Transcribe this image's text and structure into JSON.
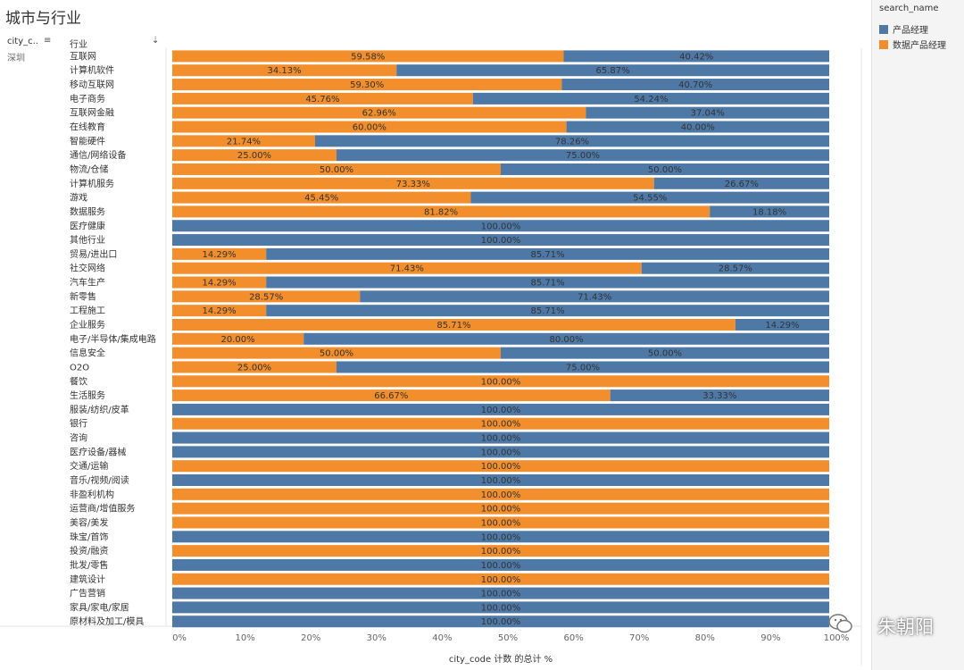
{
  "header": {
    "title": "城市与行业",
    "city_col": "city_c..",
    "industry_col": "行业",
    "city_value": "深圳"
  },
  "legend": {
    "title": "search_name",
    "items": [
      {
        "label": "产品经理",
        "color": "#4e79a7"
      },
      {
        "label": "数据产品经理",
        "color": "#f28e2b"
      }
    ]
  },
  "watermark": "朱朝阳",
  "chart_data": {
    "type": "bar",
    "orientation": "horizontal",
    "stacked": true,
    "categories": [
      "互联网",
      "计算机软件",
      "移动互联网",
      "电子商务",
      "互联网金融",
      "在线教育",
      "智能硬件",
      "通信/网络设备",
      "物流/仓储",
      "计算机服务",
      "游戏",
      "数据服务",
      "医疗健康",
      "其他行业",
      "贸易/进出口",
      "社交网络",
      "汽车生产",
      "新零售",
      "工程施工",
      "企业服务",
      "电子/半导体/集成电路",
      "信息安全",
      "O2O",
      "餐饮",
      "生活服务",
      "服装/纺织/皮革",
      "银行",
      "咨询",
      "医疗设备/器械",
      "交通/运输",
      "音乐/视频/阅读",
      "非盈利机构",
      "运营商/增值服务",
      "美容/美发",
      "珠宝/首饰",
      "投资/融资",
      "批发/零售",
      "建筑设计",
      "广告营销",
      "家具/家电/家居",
      "原材料及加工/模具"
    ],
    "series": [
      {
        "name": "数据产品经理",
        "color": "#f28e2b",
        "values": [
          59.58,
          34.13,
          59.3,
          45.76,
          62.96,
          60.0,
          21.74,
          25.0,
          50.0,
          73.33,
          45.45,
          81.82,
          0,
          0,
          14.29,
          71.43,
          14.29,
          28.57,
          14.29,
          85.71,
          20.0,
          50.0,
          25.0,
          100.0,
          66.67,
          0,
          100.0,
          0,
          0,
          100.0,
          0,
          100.0,
          100.0,
          100.0,
          0,
          100.0,
          0,
          100.0,
          0,
          0,
          0
        ]
      },
      {
        "name": "产品经理",
        "color": "#4e79a7",
        "values": [
          40.42,
          65.87,
          40.7,
          54.24,
          37.04,
          40.0,
          78.26,
          75.0,
          50.0,
          26.67,
          54.55,
          18.18,
          100.0,
          100.0,
          85.71,
          28.57,
          85.71,
          71.43,
          85.71,
          14.29,
          80.0,
          50.0,
          75.0,
          0,
          33.33,
          100.0,
          0,
          100.0,
          100.0,
          0,
          100.0,
          0,
          0,
          0,
          100.0,
          0,
          100.0,
          0,
          100.0,
          100.0,
          100.0
        ]
      }
    ],
    "x_ticks": [
      "0%",
      "10%",
      "20%",
      "30%",
      "40%",
      "50%",
      "60%",
      "70%",
      "80%",
      "90%",
      "100%"
    ],
    "xlim": [
      0,
      100
    ],
    "xlabel": "city_code 计数 的总计 %",
    "ylabel": "行业",
    "grid": false,
    "legend_position": "right"
  }
}
